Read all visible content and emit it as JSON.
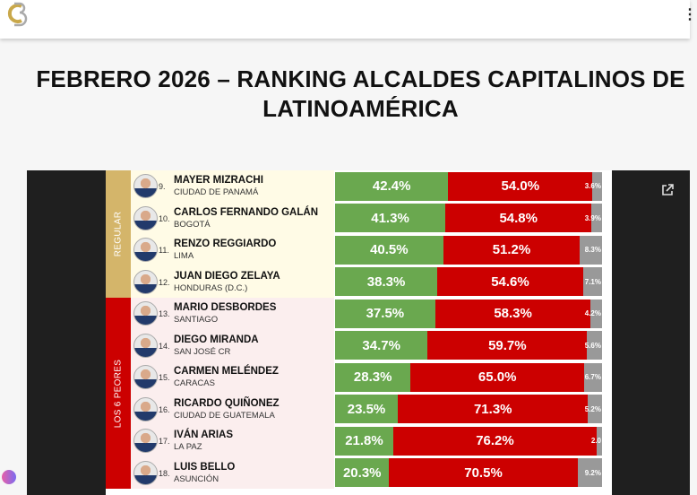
{
  "header": {
    "logo": "CB",
    "menu_icon": "kebab-menu-icon"
  },
  "title": "FEBRERO 2026 – RANKING ALCALDES CAPITALINOS DE LATINOAMÉRICA",
  "groups": [
    {
      "label": "REGULAR",
      "color": "#d4b56a",
      "bg": "#fffbe6"
    },
    {
      "label": "LOS 6 PEORES",
      "color": "#cc0000",
      "bg": "#fbeeee"
    }
  ],
  "colors": {
    "approve": "#6aa84f",
    "disapprove": "#cc0000",
    "none": "#999999"
  },
  "rows": [
    {
      "rank": "9.",
      "name": "MAYER MIZRACHI",
      "city": "CIUDAD DE PANAMÁ",
      "approve": 42.4,
      "disapprove": 54.0,
      "none": 3.6,
      "approve_label": "42.4%",
      "disapprove_label": "54.0%",
      "none_label": "3.6%"
    },
    {
      "rank": "10.",
      "name": "CARLOS FERNANDO GALÁN",
      "city": "BOGOTÁ",
      "approve": 41.3,
      "disapprove": 54.8,
      "none": 3.9,
      "approve_label": "41.3%",
      "disapprove_label": "54.8%",
      "none_label": "3.9%"
    },
    {
      "rank": "11.",
      "name": "RENZO REGGIARDO",
      "city": "LIMA",
      "approve": 40.5,
      "disapprove": 51.2,
      "none": 8.3,
      "approve_label": "40.5%",
      "disapprove_label": "51.2%",
      "none_label": "8.3%"
    },
    {
      "rank": "12.",
      "name": "JUAN DIEGO ZELAYA",
      "city": "HONDURAS (D.C.)",
      "approve": 38.3,
      "disapprove": 54.6,
      "none": 7.1,
      "approve_label": "38.3%",
      "disapprove_label": "54.6%",
      "none_label": "7.1%"
    },
    {
      "rank": "13.",
      "name": "MARIO DESBORDES",
      "city": "SANTIAGO",
      "approve": 37.5,
      "disapprove": 58.3,
      "none": 4.2,
      "approve_label": "37.5%",
      "disapprove_label": "58.3%",
      "none_label": "4.2%"
    },
    {
      "rank": "14.",
      "name": "DIEGO MIRANDA",
      "city": "SAN JOSÉ CR",
      "approve": 34.7,
      "disapprove": 59.7,
      "none": 5.6,
      "approve_label": "34.7%",
      "disapprove_label": "59.7%",
      "none_label": "5.6%"
    },
    {
      "rank": "15.",
      "name": "CARMEN MELÉNDEZ",
      "city": "CARACAS",
      "approve": 28.3,
      "disapprove": 65.0,
      "none": 6.7,
      "approve_label": "28.3%",
      "disapprove_label": "65.0%",
      "none_label": "6.7%"
    },
    {
      "rank": "16.",
      "name": "RICARDO QUIÑONEZ",
      "city": "CIUDAD DE GUATEMALA",
      "approve": 23.5,
      "disapprove": 71.3,
      "none": 5.2,
      "approve_label": "23.5%",
      "disapprove_label": "71.3%",
      "none_label": "5.2%"
    },
    {
      "rank": "17.",
      "name": "IVÁN ARIAS",
      "city": "LA PAZ",
      "approve": 21.8,
      "disapprove": 76.2,
      "none": 2.0,
      "approve_label": "21.8%",
      "disapprove_label": "76.2%",
      "none_label": "2.0"
    },
    {
      "rank": "18.",
      "name": "LUIS BELLO",
      "city": "ASUNCIÓN",
      "approve": 20.3,
      "disapprove": 70.5,
      "none": 9.2,
      "approve_label": "20.3%",
      "disapprove_label": "70.5%",
      "none_label": "9.2%"
    }
  ]
}
